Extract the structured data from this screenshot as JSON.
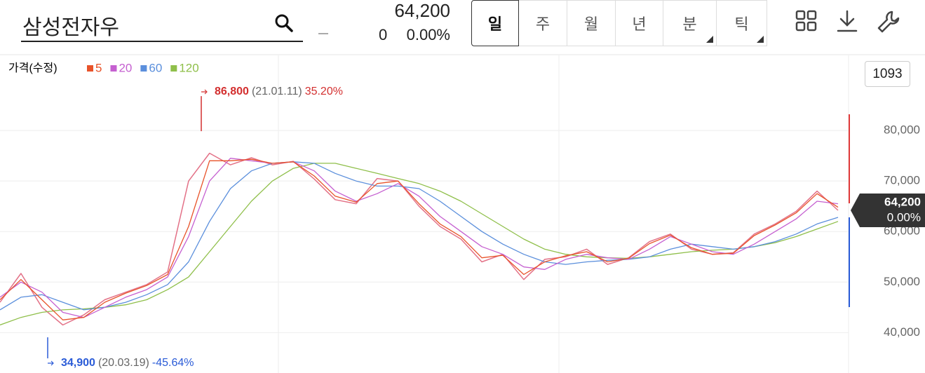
{
  "header": {
    "search": "삼성전자우"
  },
  "quote": {
    "price": "64,200",
    "change": "0",
    "change_pct": "0.00%"
  },
  "tabs": [
    "일",
    "주",
    "월",
    "년",
    "분",
    "틱"
  ],
  "chart_data": {
    "type": "line",
    "legend_label": "가격(수정)",
    "count": "1093",
    "price": {
      "color": "#e0627a",
      "values": [
        46000,
        51700,
        45000,
        41500,
        43500,
        46500,
        48000,
        49500,
        52000,
        70000,
        75500,
        73200,
        74600,
        73200,
        73900,
        70400,
        66300,
        65500,
        70500,
        70000,
        65000,
        61000,
        58500,
        54000,
        55500,
        50500,
        54500,
        55000,
        56500,
        53500,
        54800,
        58000,
        59500,
        56500,
        55500,
        55800,
        59500,
        61500,
        64000,
        68000,
        64200
      ]
    },
    "series": [
      {
        "name": "5",
        "color": "#e8532a",
        "values": [
          46500,
          50500,
          46500,
          42500,
          43000,
          46000,
          47800,
          49300,
          51500,
          61000,
          74000,
          74000,
          74300,
          73500,
          73800,
          71000,
          67000,
          65800,
          69500,
          70000,
          65500,
          61500,
          59000,
          54800,
          55300,
          51500,
          54000,
          55200,
          56000,
          54000,
          54700,
          57600,
          59300,
          56800,
          55500,
          55700,
          59200,
          61300,
          63700,
          67500,
          64800
        ]
      },
      {
        "name": "20",
        "color": "#c560d0",
        "values": [
          47000,
          50000,
          48000,
          44000,
          43000,
          45000,
          47000,
          48500,
          51000,
          59000,
          70000,
          74500,
          74000,
          73500,
          73800,
          72000,
          68000,
          66000,
          67500,
          69500,
          67000,
          63000,
          60000,
          57000,
          55500,
          53000,
          52500,
          54500,
          55500,
          54800,
          54500,
          56500,
          59000,
          57500,
          56000,
          55500,
          57500,
          60000,
          62500,
          66000,
          65500
        ]
      },
      {
        "name": "60",
        "color": "#5b8fdc",
        "values": [
          44500,
          47000,
          47500,
          46000,
          44500,
          45000,
          46000,
          47500,
          49500,
          54000,
          62000,
          68500,
          72000,
          73500,
          73800,
          73500,
          71500,
          70000,
          69000,
          69000,
          68500,
          66000,
          63000,
          60000,
          57500,
          55500,
          54000,
          53500,
          54000,
          54300,
          54500,
          55000,
          56500,
          57500,
          57000,
          56500,
          57000,
          58000,
          59500,
          61500,
          62800
        ]
      },
      {
        "name": "120",
        "color": "#8fbf4a",
        "values": [
          41500,
          43000,
          44000,
          44500,
          44700,
          45000,
          45500,
          46500,
          48500,
          51000,
          56000,
          61000,
          66000,
          70000,
          72500,
          73500,
          73500,
          72500,
          71500,
          70500,
          69500,
          68000,
          66000,
          63500,
          61000,
          58500,
          56500,
          55500,
          55000,
          54800,
          54700,
          55000,
          55500,
          56000,
          56300,
          56500,
          57000,
          57800,
          59000,
          60500,
          62000
        ]
      }
    ],
    "ylim": [
      32000,
      95000
    ],
    "yticks": [
      {
        "value": 40000,
        "label": "40,000"
      },
      {
        "value": 50000,
        "label": "50,000"
      },
      {
        "value": 60000,
        "label": "60,000"
      },
      {
        "value": 70000,
        "label": "70,000"
      },
      {
        "value": 80000,
        "label": "80,000"
      }
    ],
    "grid": true,
    "annotations": {
      "high": {
        "price": {
          "value": 86800,
          "label": "86,800"
        },
        "date": "(21.01.11)",
        "change": "35.20%",
        "color": "#d32f2f"
      },
      "low": {
        "price": {
          "value": 34900,
          "label": "34,900"
        },
        "date": "(20.03.19)",
        "change": "-45.64%",
        "color": "#2a5bd7"
      }
    },
    "last": {
      "price": {
        "value": 64200,
        "label": "64,200"
      },
      "change": "0.00%"
    }
  }
}
